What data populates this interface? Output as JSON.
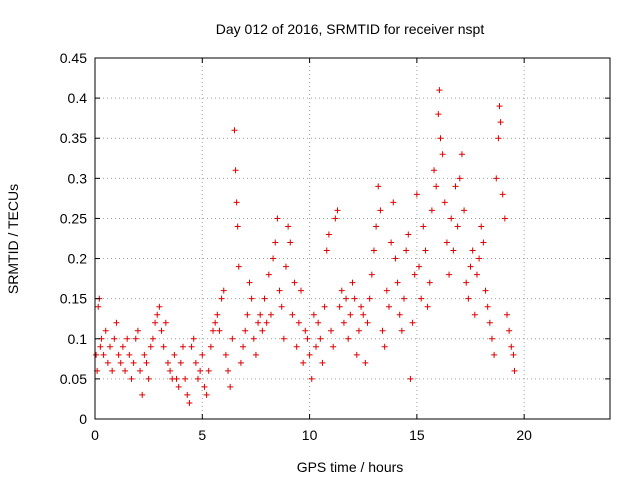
{
  "chart_data": {
    "type": "scatter",
    "title": "Day 012 of 2016, SRMTID for receiver nspt",
    "xlabel": "GPS time / hours",
    "ylabel": "SRMTID / TECUs",
    "xlim": [
      0,
      24
    ],
    "ylim": [
      0,
      0.45
    ],
    "xticks": [
      0,
      5,
      10,
      15,
      20
    ],
    "yticks": [
      0,
      0.05,
      0.1,
      0.15,
      0.2,
      0.25,
      0.3,
      0.35,
      0.4,
      0.45
    ],
    "xtick_labels": [
      "0",
      "5",
      "10",
      "15",
      "20"
    ],
    "ytick_labels": [
      "0",
      "0.05",
      "0.1",
      "0.15",
      "0.2",
      "0.25",
      "0.3",
      "0.35",
      "0.4",
      "0.45"
    ],
    "grid": true,
    "marker": "+",
    "color": "#e00000",
    "series": [
      {
        "points": [
          [
            0.05,
            0.08
          ],
          [
            0.1,
            0.06
          ],
          [
            0.15,
            0.14
          ],
          [
            0.2,
            0.15
          ],
          [
            0.25,
            0.09
          ],
          [
            0.3,
            0.1
          ],
          [
            0.4,
            0.08
          ],
          [
            0.5,
            0.11
          ],
          [
            0.6,
            0.07
          ],
          [
            0.7,
            0.09
          ],
          [
            0.8,
            0.06
          ],
          [
            0.9,
            0.1
          ],
          [
            1.0,
            0.12
          ],
          [
            1.1,
            0.08
          ],
          [
            1.2,
            0.07
          ],
          [
            1.3,
            0.09
          ],
          [
            1.4,
            0.06
          ],
          [
            1.5,
            0.1
          ],
          [
            1.6,
            0.08
          ],
          [
            1.7,
            0.05
          ],
          [
            1.8,
            0.07
          ],
          [
            1.9,
            0.1
          ],
          [
            2.0,
            0.11
          ],
          [
            2.1,
            0.06
          ],
          [
            2.2,
            0.03
          ],
          [
            2.3,
            0.08
          ],
          [
            2.4,
            0.07
          ],
          [
            2.5,
            0.05
          ],
          [
            2.6,
            0.09
          ],
          [
            2.7,
            0.1
          ],
          [
            2.8,
            0.12
          ],
          [
            2.9,
            0.13
          ],
          [
            3.0,
            0.14
          ],
          [
            3.1,
            0.11
          ],
          [
            3.2,
            0.09
          ],
          [
            3.3,
            0.12
          ],
          [
            3.4,
            0.07
          ],
          [
            3.5,
            0.06
          ],
          [
            3.6,
            0.05
          ],
          [
            3.7,
            0.08
          ],
          [
            3.8,
            0.05
          ],
          [
            3.9,
            0.04
          ],
          [
            4.0,
            0.07
          ],
          [
            4.1,
            0.09
          ],
          [
            4.2,
            0.05
          ],
          [
            4.3,
            0.03
          ],
          [
            4.4,
            0.02
          ],
          [
            4.5,
            0.09
          ],
          [
            4.6,
            0.1
          ],
          [
            4.7,
            0.07
          ],
          [
            4.8,
            0.05
          ],
          [
            4.9,
            0.06
          ],
          [
            5.0,
            0.08
          ],
          [
            5.1,
            0.04
          ],
          [
            5.2,
            0.03
          ],
          [
            5.3,
            0.06
          ],
          [
            5.4,
            0.09
          ],
          [
            5.5,
            0.11
          ],
          [
            5.6,
            0.12
          ],
          [
            5.7,
            0.13
          ],
          [
            5.8,
            0.11
          ],
          [
            5.9,
            0.15
          ],
          [
            6.0,
            0.16
          ],
          [
            6.1,
            0.08
          ],
          [
            6.2,
            0.06
          ],
          [
            6.3,
            0.04
          ],
          [
            6.4,
            0.1
          ],
          [
            6.5,
            0.36
          ],
          [
            6.55,
            0.31
          ],
          [
            6.6,
            0.27
          ],
          [
            6.65,
            0.24
          ],
          [
            6.7,
            0.19
          ],
          [
            6.8,
            0.07
          ],
          [
            6.9,
            0.09
          ],
          [
            7.0,
            0.11
          ],
          [
            7.1,
            0.13
          ],
          [
            7.2,
            0.17
          ],
          [
            7.3,
            0.15
          ],
          [
            7.4,
            0.1
          ],
          [
            7.5,
            0.08
          ],
          [
            7.6,
            0.12
          ],
          [
            7.7,
            0.13
          ],
          [
            7.8,
            0.11
          ],
          [
            7.9,
            0.15
          ],
          [
            8.0,
            0.12
          ],
          [
            8.1,
            0.18
          ],
          [
            8.2,
            0.13
          ],
          [
            8.3,
            0.2
          ],
          [
            8.4,
            0.22
          ],
          [
            8.5,
            0.25
          ],
          [
            8.6,
            0.16
          ],
          [
            8.7,
            0.14
          ],
          [
            8.8,
            0.1
          ],
          [
            8.9,
            0.19
          ],
          [
            9.0,
            0.24
          ],
          [
            9.1,
            0.22
          ],
          [
            9.2,
            0.13
          ],
          [
            9.3,
            0.17
          ],
          [
            9.4,
            0.09
          ],
          [
            9.5,
            0.12
          ],
          [
            9.6,
            0.16
          ],
          [
            9.7,
            0.07
          ],
          [
            9.8,
            0.11
          ],
          [
            9.9,
            0.1
          ],
          [
            10.0,
            0.08
          ],
          [
            10.1,
            0.05
          ],
          [
            10.2,
            0.13
          ],
          [
            10.3,
            0.09
          ],
          [
            10.4,
            0.12
          ],
          [
            10.5,
            0.1
          ],
          [
            10.6,
            0.07
          ],
          [
            10.7,
            0.14
          ],
          [
            10.8,
            0.21
          ],
          [
            10.9,
            0.23
          ],
          [
            11.0,
            0.11
          ],
          [
            11.1,
            0.09
          ],
          [
            11.2,
            0.25
          ],
          [
            11.3,
            0.26
          ],
          [
            11.4,
            0.14
          ],
          [
            11.5,
            0.16
          ],
          [
            11.6,
            0.12
          ],
          [
            11.7,
            0.15
          ],
          [
            11.8,
            0.1
          ],
          [
            11.9,
            0.13
          ],
          [
            12.0,
            0.17
          ],
          [
            12.1,
            0.15
          ],
          [
            12.2,
            0.08
          ],
          [
            12.3,
            0.11
          ],
          [
            12.4,
            0.14
          ],
          [
            12.5,
            0.13
          ],
          [
            12.6,
            0.07
          ],
          [
            12.7,
            0.12
          ],
          [
            12.8,
            0.15
          ],
          [
            12.9,
            0.18
          ],
          [
            13.0,
            0.21
          ],
          [
            13.1,
            0.24
          ],
          [
            13.2,
            0.29
          ],
          [
            13.3,
            0.26
          ],
          [
            13.4,
            0.11
          ],
          [
            13.5,
            0.09
          ],
          [
            13.6,
            0.16
          ],
          [
            13.7,
            0.14
          ],
          [
            13.8,
            0.22
          ],
          [
            13.9,
            0.27
          ],
          [
            14.0,
            0.2
          ],
          [
            14.1,
            0.17
          ],
          [
            14.2,
            0.13
          ],
          [
            14.3,
            0.11
          ],
          [
            14.4,
            0.15
          ],
          [
            14.5,
            0.21
          ],
          [
            14.6,
            0.23
          ],
          [
            14.7,
            0.05
          ],
          [
            14.8,
            0.12
          ],
          [
            14.9,
            0.18
          ],
          [
            15.0,
            0.28
          ],
          [
            15.1,
            0.19
          ],
          [
            15.2,
            0.15
          ],
          [
            15.3,
            0.24
          ],
          [
            15.4,
            0.21
          ],
          [
            15.5,
            0.14
          ],
          [
            15.6,
            0.17
          ],
          [
            15.7,
            0.26
          ],
          [
            15.8,
            0.31
          ],
          [
            15.9,
            0.29
          ],
          [
            16.0,
            0.38
          ],
          [
            16.05,
            0.41
          ],
          [
            16.1,
            0.35
          ],
          [
            16.2,
            0.33
          ],
          [
            16.3,
            0.27
          ],
          [
            16.4,
            0.22
          ],
          [
            16.5,
            0.18
          ],
          [
            16.6,
            0.25
          ],
          [
            16.7,
            0.21
          ],
          [
            16.8,
            0.29
          ],
          [
            16.9,
            0.24
          ],
          [
            17.0,
            0.3
          ],
          [
            17.1,
            0.33
          ],
          [
            17.2,
            0.26
          ],
          [
            17.3,
            0.17
          ],
          [
            17.4,
            0.15
          ],
          [
            17.5,
            0.19
          ],
          [
            17.6,
            0.21
          ],
          [
            17.7,
            0.13
          ],
          [
            17.8,
            0.18
          ],
          [
            17.9,
            0.2
          ],
          [
            18.0,
            0.24
          ],
          [
            18.1,
            0.22
          ],
          [
            18.2,
            0.16
          ],
          [
            18.3,
            0.14
          ],
          [
            18.4,
            0.12
          ],
          [
            18.5,
            0.1
          ],
          [
            18.6,
            0.08
          ],
          [
            18.7,
            0.3
          ],
          [
            18.8,
            0.35
          ],
          [
            18.85,
            0.39
          ],
          [
            18.9,
            0.37
          ],
          [
            19.0,
            0.28
          ],
          [
            19.1,
            0.25
          ],
          [
            19.2,
            0.13
          ],
          [
            19.3,
            0.11
          ],
          [
            19.4,
            0.09
          ],
          [
            19.5,
            0.08
          ],
          [
            19.55,
            0.06
          ]
        ]
      }
    ]
  }
}
